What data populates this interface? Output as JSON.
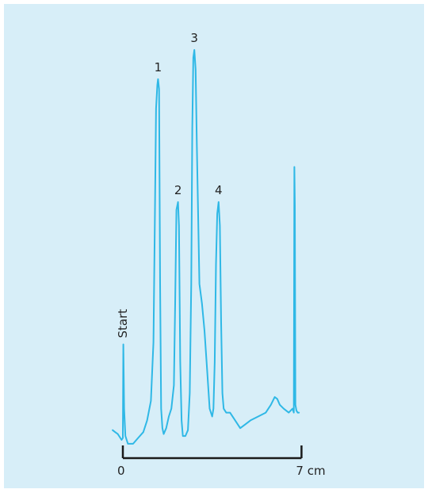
{
  "colors": {
    "background": "#d7eef8",
    "trace": "#2fb8e6",
    "scale": "#1a1a1a",
    "text": "#222222"
  },
  "chart_data": {
    "type": "line",
    "title": "",
    "xlabel": "",
    "ylabel": "",
    "x_unit": "cm",
    "xlim": [
      -0.4,
      7.1
    ],
    "ylim": [
      0,
      100
    ],
    "grid": false,
    "legend": "none",
    "scale_bar": {
      "start": 0,
      "end": 7,
      "start_label": "0",
      "end_label": "7 cm"
    },
    "start_marker": {
      "label": "Start",
      "x": 0,
      "y": 24.5
    },
    "peaks": [
      {
        "label": "1",
        "x": 1.38,
        "y": 92.5
      },
      {
        "label": "2",
        "x": 2.16,
        "y": 61
      },
      {
        "label": "3",
        "x": 2.8,
        "y": 100
      },
      {
        "label": "4",
        "x": 3.75,
        "y": 61
      }
    ],
    "series": [
      {
        "x": [
          -0.4,
          -0.3,
          -0.2,
          -0.1,
          -0.05,
          0.0,
          0.02,
          0.05,
          0.1,
          0.2,
          0.4,
          0.6,
          0.8,
          0.95,
          1.1,
          1.2,
          1.25,
          1.3,
          1.35,
          1.38,
          1.42,
          1.46,
          1.5,
          1.55,
          1.6,
          1.7,
          1.8,
          1.9,
          2.0,
          2.05,
          2.1,
          2.16,
          2.2,
          2.25,
          2.3,
          2.35,
          2.45,
          2.55,
          2.62,
          2.68,
          2.72,
          2.76,
          2.8,
          2.85,
          2.9,
          3.0,
          3.1,
          3.2,
          3.3,
          3.4,
          3.5,
          3.55,
          3.6,
          3.65,
          3.7,
          3.75,
          3.8,
          3.85,
          3.9,
          3.95,
          4.05,
          4.2,
          4.4,
          4.6,
          4.8,
          5.0,
          5.3,
          5.6,
          5.8,
          5.95,
          6.05,
          6.15,
          6.3,
          6.5,
          6.65,
          6.7,
          6.72,
          6.74,
          6.76,
          6.8,
          6.85,
          6.9
        ],
        "y": [
          2.5,
          2.0,
          1.5,
          0.5,
          0.0,
          0.5,
          24.5,
          8.0,
          1.0,
          -1.0,
          -1.0,
          0.5,
          2.0,
          5.0,
          10.0,
          25.0,
          55.0,
          85.0,
          91.0,
          92.5,
          90.0,
          40.0,
          8.0,
          3.0,
          1.5,
          3.0,
          6.0,
          8.0,
          14.0,
          35.0,
          59.0,
          61.0,
          55.0,
          20.0,
          5.0,
          1.0,
          1.0,
          2.5,
          12.0,
          40.0,
          80.0,
          98.0,
          100.0,
          95.0,
          75.0,
          40.0,
          35.0,
          28.0,
          18.0,
          8.0,
          6.0,
          8.0,
          20.0,
          45.0,
          58.0,
          61.0,
          55.0,
          30.0,
          12.0,
          8.0,
          7.0,
          7.0,
          5.0,
          3.0,
          4.0,
          5.0,
          6.0,
          7.0,
          9.0,
          11.0,
          10.5,
          9.0,
          8.0,
          7.0,
          8.0,
          7.0,
          70.0,
          60.0,
          9.0,
          7.5,
          7.0,
          7.0
        ]
      }
    ]
  }
}
